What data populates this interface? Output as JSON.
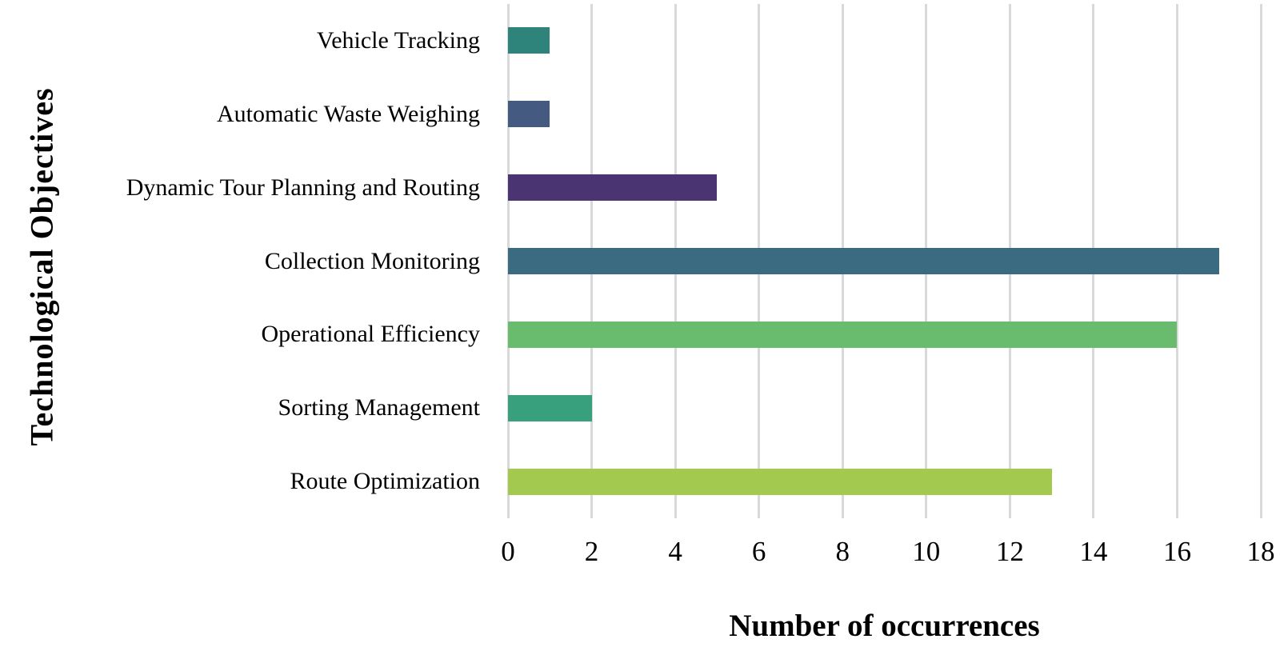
{
  "chart_data": {
    "type": "bar",
    "orientation": "horizontal",
    "title": "",
    "xlabel": "Number of occurrences",
    "ylabel": "Technological Objectives",
    "categories": [
      "Vehicle Tracking",
      "Automatic Waste Weighing",
      "Dynamic Tour Planning and Routing",
      "Collection Monitoring",
      "Operational Efficiency",
      "Sorting Management",
      "Route Optimization"
    ],
    "values": [
      1,
      1,
      5,
      17,
      16,
      2,
      13
    ],
    "bar_colors": [
      "#2e837a",
      "#455a80",
      "#4a3572",
      "#3a6b81",
      "#69bb6e",
      "#38a07d",
      "#a3c94e"
    ],
    "xlim": [
      0,
      18
    ],
    "xticks": [
      0,
      2,
      4,
      6,
      8,
      10,
      12,
      14,
      16,
      18
    ],
    "grid": "vertical",
    "gridline_color": "#d9d9d9",
    "background_color": "#ffffff",
    "legend_position": "none",
    "text_color": "#000000"
  }
}
